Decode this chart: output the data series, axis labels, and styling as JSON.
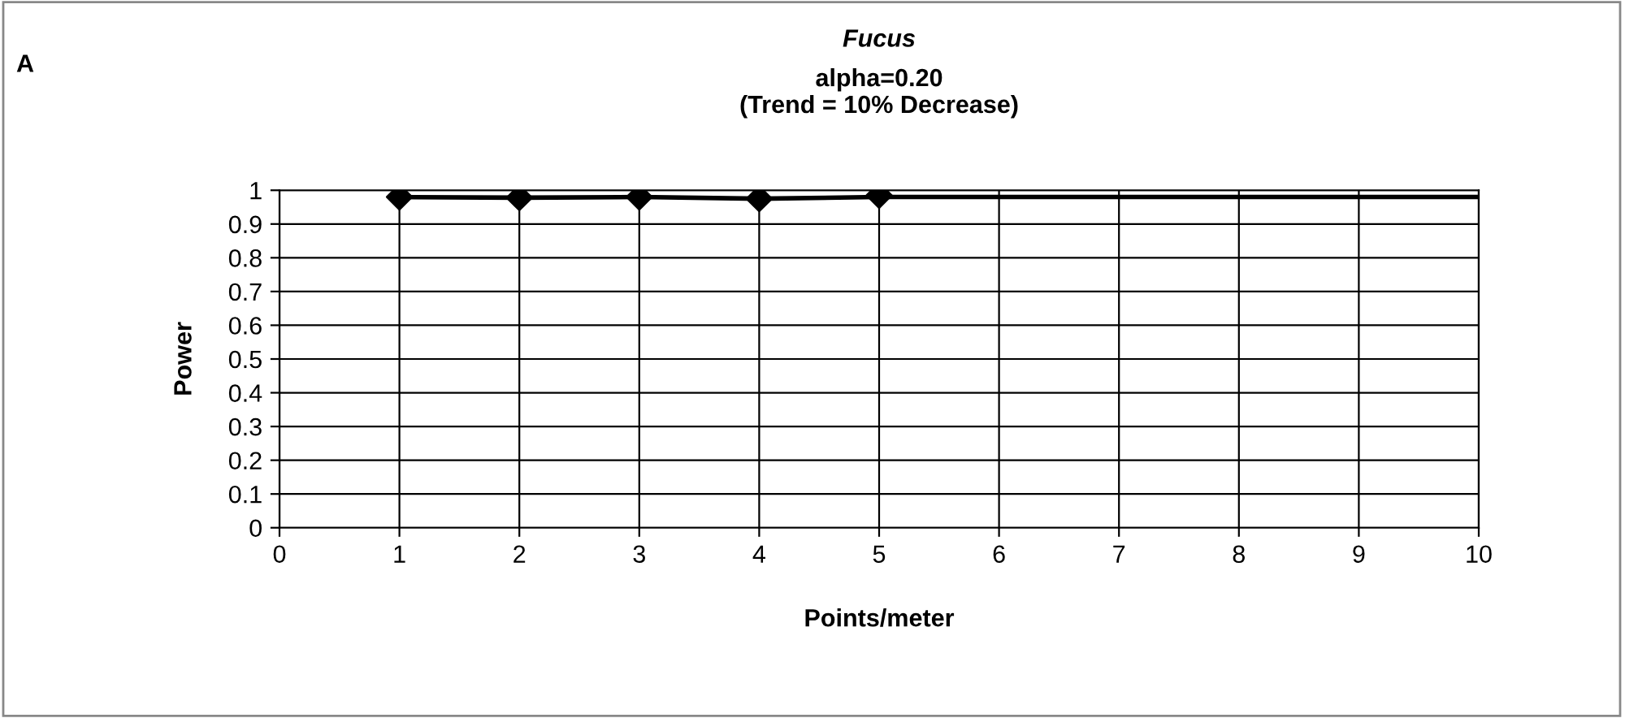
{
  "chart_data": {
    "type": "line",
    "title": "Fucus",
    "subtitle": "alpha=0.20\n(Trend = 10% Decrease)",
    "xlabel": "Points/meter",
    "ylabel": "Power",
    "annotations": [
      "A"
    ],
    "series": [
      {
        "color": "#000000",
        "x": [
          1,
          2,
          3,
          4,
          5,
          6,
          7,
          8,
          9,
          10
        ],
        "values": [
          0.98,
          0.978,
          0.98,
          0.975,
          0.98,
          0.98,
          0.98,
          0.98,
          0.98,
          0.98
        ],
        "marker": "none"
      },
      {
        "type": "scatter",
        "color": "#000000",
        "x": [
          1,
          2,
          3,
          4,
          5
        ],
        "values": [
          0.98,
          0.978,
          0.98,
          0.975,
          0.985
        ],
        "marker": "diamond"
      }
    ],
    "xlim": [
      0,
      10
    ],
    "xticks": [
      0,
      1,
      2,
      3,
      4,
      5,
      6,
      7,
      8,
      9,
      10
    ],
    "ylim": [
      0,
      1
    ],
    "yticks": [
      0,
      0.1,
      0.2,
      0.3,
      0.4,
      0.5,
      0.6,
      0.7,
      0.8,
      0.9,
      1
    ],
    "grid": true,
    "legend": false
  }
}
